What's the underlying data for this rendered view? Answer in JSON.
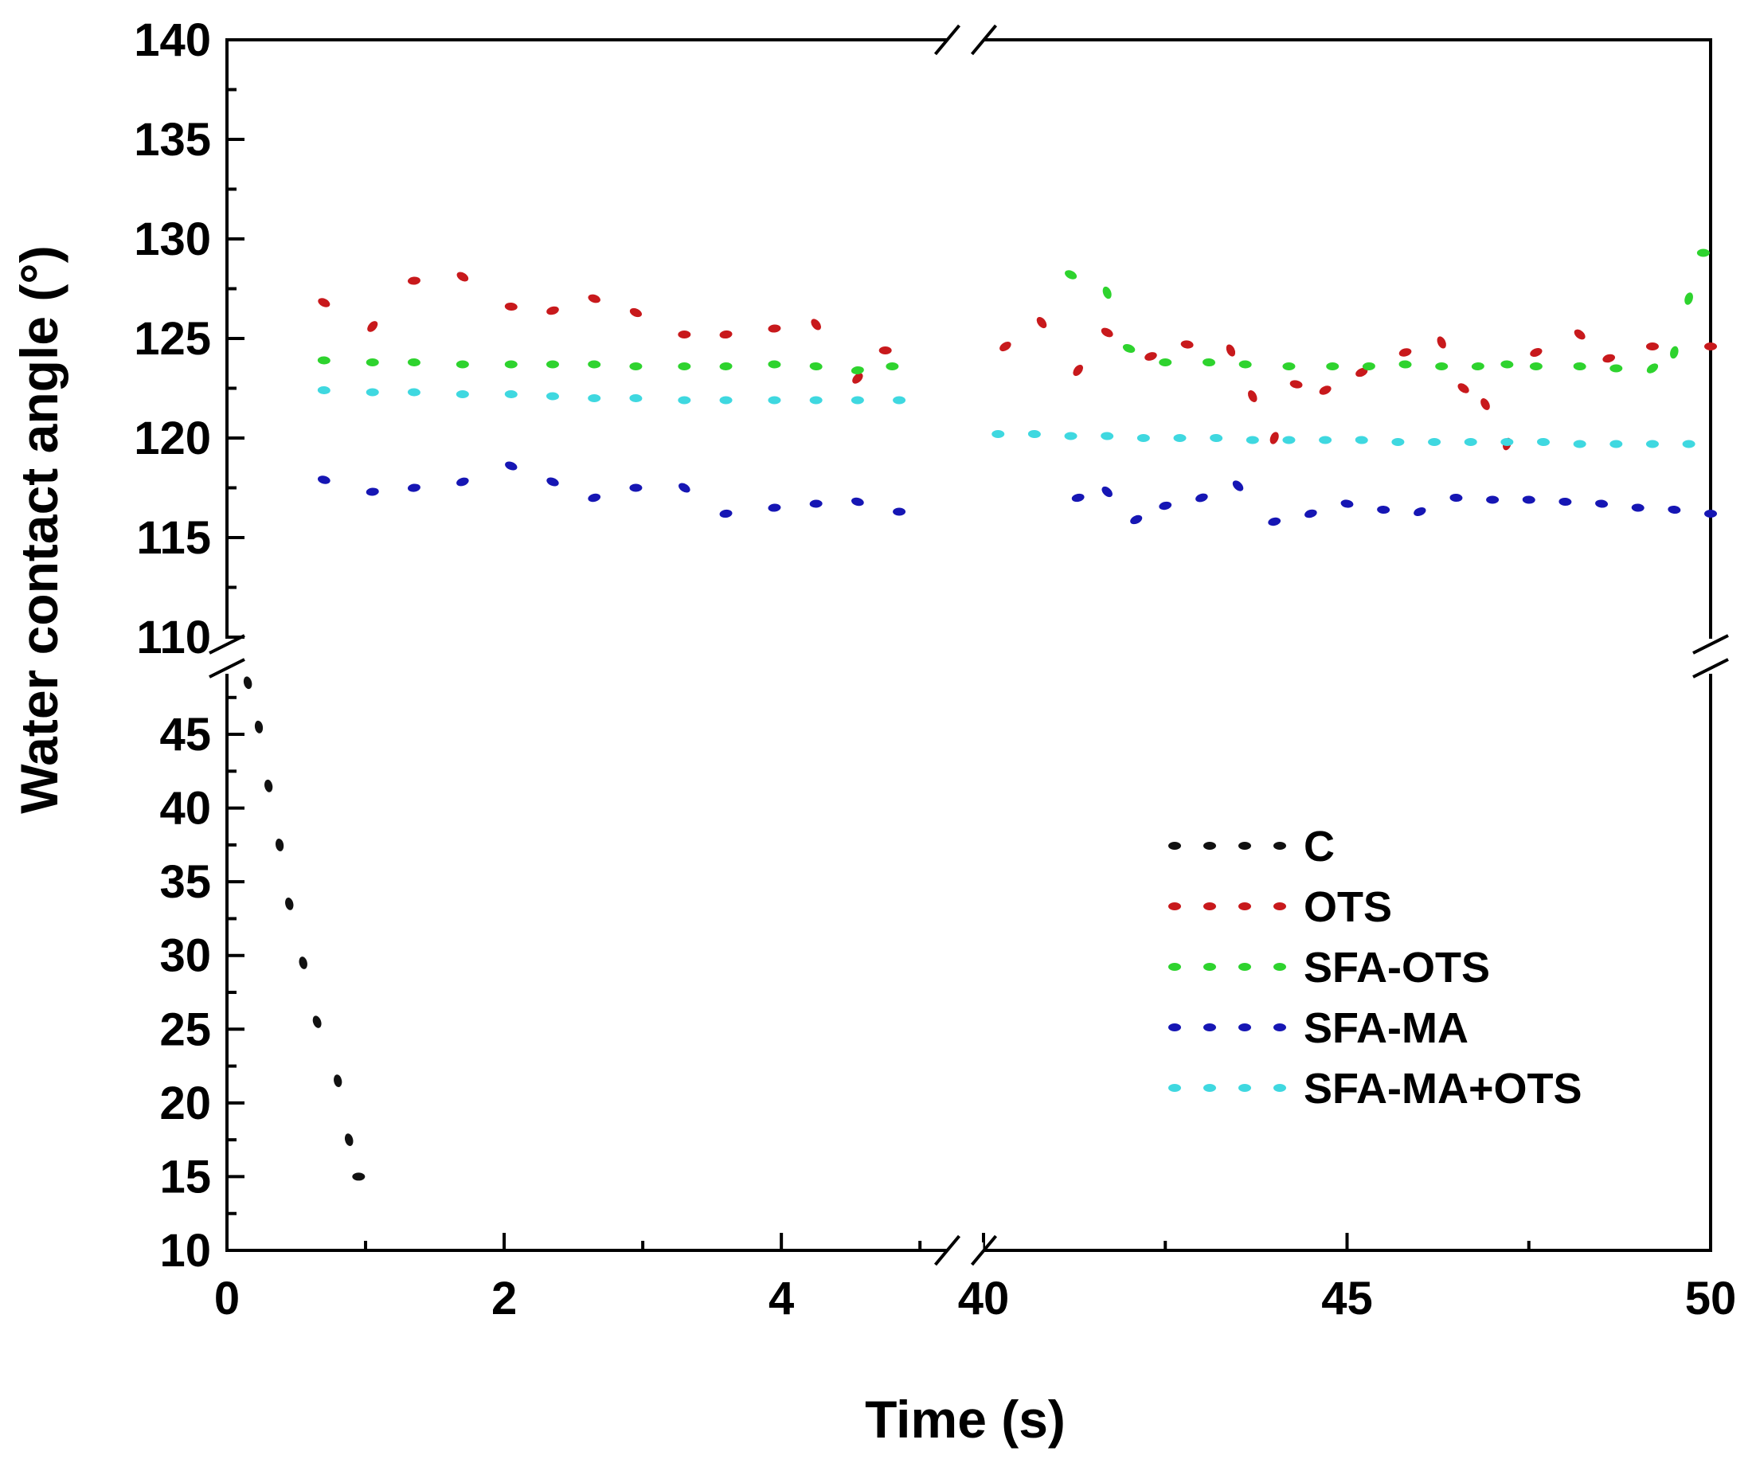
{
  "chart_data": {
    "type": "scatter",
    "title": "",
    "xlabel": "Time (s)",
    "ylabel": "Water contact angle (°)",
    "x_segments": [
      {
        "range": [
          0,
          5.2
        ],
        "major_ticks": [
          0,
          2,
          4
        ],
        "minor_ticks": [
          1,
          3,
          5
        ]
      },
      {
        "range": [
          40,
          50
        ],
        "major_ticks": [
          40,
          45,
          50
        ],
        "minor_ticks": [
          42.5,
          47.5
        ]
      }
    ],
    "y_segments": [
      {
        "range": [
          10,
          49
        ],
        "major_ticks": [
          10,
          15,
          20,
          25,
          30,
          35,
          40,
          45
        ]
      },
      {
        "range": [
          110,
          140
        ],
        "major_ticks": [
          110,
          115,
          120,
          125,
          130,
          135,
          140
        ]
      }
    ],
    "legend_position": "center-right",
    "series": [
      {
        "name": "C",
        "color": "#111111",
        "x": [
          0.15,
          0.23,
          0.3,
          0.38,
          0.45,
          0.55,
          0.65,
          0.8,
          0.88,
          0.95
        ],
        "y": [
          48.5,
          45.5,
          41.5,
          37.5,
          33.5,
          29.5,
          25.5,
          21.5,
          17.5,
          15
        ]
      },
      {
        "name": "OTS",
        "color": "#c8191c",
        "x": [
          0.7,
          1.05,
          1.35,
          1.7,
          2.05,
          2.35,
          2.65,
          2.95,
          3.3,
          3.6,
          3.95,
          4.25,
          4.55,
          4.75,
          40.3,
          40.8,
          41.3,
          41.7,
          42.3,
          42.8,
          43.4,
          43.7,
          44.0,
          44.3,
          44.7,
          45.2,
          45.8,
          46.3,
          46.6,
          46.9,
          47.2,
          47.6,
          48.2,
          48.6,
          49.2,
          50.0
        ],
        "y": [
          126.8,
          125.6,
          127.9,
          128.1,
          126.6,
          126.4,
          127.0,
          126.3,
          125.2,
          125.2,
          125.5,
          125.7,
          123.0,
          124.4,
          124.6,
          125.8,
          123.4,
          125.3,
          124.1,
          124.7,
          124.4,
          122.1,
          120.0,
          122.7,
          122.4,
          123.3,
          124.3,
          124.8,
          122.5,
          121.7,
          119.7,
          124.3,
          125.2,
          124.0,
          124.6,
          124.6
        ]
      },
      {
        "name": "SFA-OTS",
        "color": "#2ed32e",
        "x": [
          0.7,
          1.05,
          1.35,
          1.7,
          2.05,
          2.35,
          2.65,
          2.95,
          3.3,
          3.6,
          3.95,
          4.25,
          4.55,
          4.8,
          41.2,
          41.7,
          42.0,
          42.5,
          43.1,
          43.6,
          44.2,
          44.8,
          45.3,
          45.8,
          46.3,
          46.8,
          47.2,
          47.6,
          48.2,
          48.7,
          49.2,
          49.5,
          49.7,
          49.9
        ],
        "y": [
          123.9,
          123.8,
          123.8,
          123.7,
          123.7,
          123.7,
          123.7,
          123.6,
          123.6,
          123.6,
          123.7,
          123.6,
          123.4,
          123.6,
          128.2,
          127.3,
          124.5,
          123.8,
          123.8,
          123.7,
          123.6,
          123.6,
          123.6,
          123.7,
          123.6,
          123.6,
          123.7,
          123.6,
          123.6,
          123.5,
          123.5,
          124.3,
          127.0,
          129.3
        ]
      },
      {
        "name": "SFA-MA",
        "color": "#1616b4",
        "x": [
          0.7,
          1.05,
          1.35,
          1.7,
          2.05,
          2.35,
          2.65,
          2.95,
          3.3,
          3.6,
          3.95,
          4.25,
          4.55,
          4.85,
          41.3,
          41.7,
          42.1,
          42.5,
          43.0,
          43.5,
          44.0,
          44.5,
          45.0,
          45.5,
          46.0,
          46.5,
          47.0,
          47.5,
          48.0,
          48.5,
          49.0,
          49.5,
          50.0
        ],
        "y": [
          117.9,
          117.3,
          117.5,
          117.8,
          118.6,
          117.8,
          117.0,
          117.5,
          117.5,
          116.2,
          116.5,
          116.7,
          116.8,
          116.3,
          117.0,
          117.3,
          115.9,
          116.6,
          117.0,
          117.6,
          115.8,
          116.2,
          116.7,
          116.4,
          116.3,
          117.0,
          116.9,
          116.9,
          116.8,
          116.7,
          116.5,
          116.4,
          116.2
        ]
      },
      {
        "name": "SFA-MA+OTS",
        "color": "#3fd8e0",
        "x": [
          0.7,
          1.05,
          1.35,
          1.7,
          2.05,
          2.35,
          2.65,
          2.95,
          3.3,
          3.6,
          3.95,
          4.25,
          4.55,
          4.85,
          40.2,
          40.7,
          41.2,
          41.7,
          42.2,
          42.7,
          43.2,
          43.7,
          44.2,
          44.7,
          45.2,
          45.7,
          46.2,
          46.7,
          47.2,
          47.7,
          48.2,
          48.7,
          49.2,
          49.7
        ],
        "y": [
          122.4,
          122.3,
          122.3,
          122.2,
          122.2,
          122.1,
          122.0,
          122.0,
          121.9,
          121.9,
          121.9,
          121.9,
          121.9,
          121.9,
          120.2,
          120.2,
          120.1,
          120.1,
          120.0,
          120.0,
          120.0,
          119.9,
          119.9,
          119.9,
          119.9,
          119.8,
          119.8,
          119.8,
          119.8,
          119.8,
          119.7,
          119.7,
          119.7,
          119.7
        ]
      }
    ]
  }
}
